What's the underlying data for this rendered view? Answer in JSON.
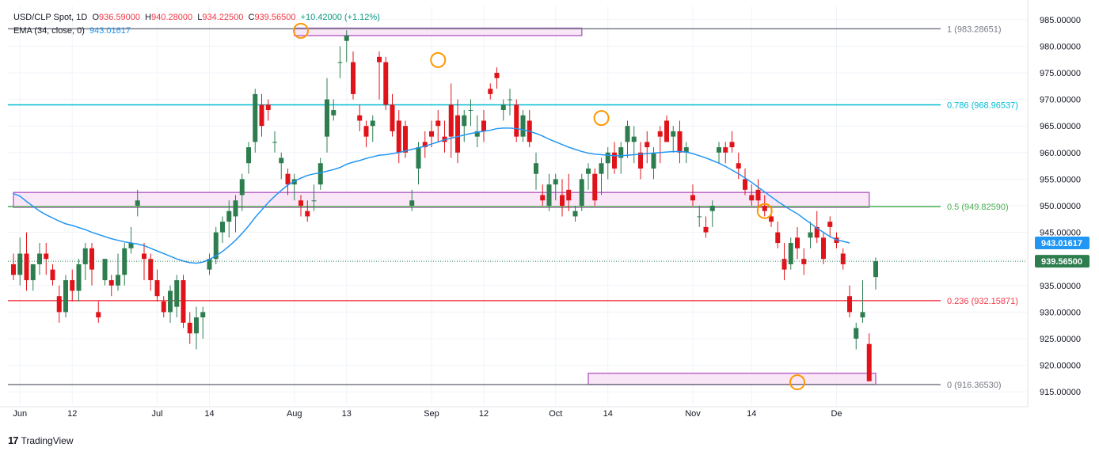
{
  "legend": {
    "symbol": "USD/CLP Spot, 1D",
    "o_label": "O",
    "o_value": "936.59000",
    "h_label": "H",
    "h_value": "940.28000",
    "l_label": "L",
    "l_value": "934.22500",
    "c_label": "C",
    "c_value": "939.56500",
    "change": "+10.42000 (+1.12%)",
    "ema_label": "EMA (34, close, 0)",
    "ema_value": "943.01617"
  },
  "brand": {
    "name": "TradingView"
  },
  "chart_data": {
    "type": "candlestick",
    "ylim": [
      912.5,
      987.5
    ],
    "y_ticks": [
      "985.00000",
      "980.00000",
      "975.00000",
      "970.00000",
      "965.00000",
      "960.00000",
      "955.00000",
      "950.00000",
      "945.00000",
      "940.00000",
      "935.00000",
      "930.00000",
      "925.00000",
      "920.00000",
      "915.00000"
    ],
    "y_tick_values": [
      985,
      980,
      975,
      970,
      965,
      960,
      955,
      950,
      945,
      940,
      935,
      930,
      925,
      920,
      915
    ],
    "x_labels": [
      {
        "label": "Jun",
        "i": 1
      },
      {
        "label": "12",
        "i": 9
      },
      {
        "label": "Jul",
        "i": 22
      },
      {
        "label": "14",
        "i": 30
      },
      {
        "label": "Aug",
        "i": 43
      },
      {
        "label": "13",
        "i": 51
      },
      {
        "label": "Sep",
        "i": 64
      },
      {
        "label": "12",
        "i": 72
      },
      {
        "label": "Oct",
        "i": 83
      },
      {
        "label": "14",
        "i": 91
      },
      {
        "label": "Nov",
        "i": 104
      },
      {
        "label": "14",
        "i": 113
      },
      {
        "label": "De",
        "i": 126
      }
    ],
    "candles": [
      [
        939,
        941,
        936,
        937
      ],
      [
        937,
        944,
        935,
        941
      ],
      [
        941,
        945,
        934,
        936
      ],
      [
        936,
        939,
        934,
        939
      ],
      [
        939,
        943,
        937,
        941
      ],
      [
        941,
        943,
        937,
        940
      ],
      [
        938,
        939,
        935,
        936
      ],
      [
        933,
        935,
        928,
        930
      ],
      [
        930,
        937,
        929,
        936
      ],
      [
        936,
        938,
        932,
        934
      ],
      [
        934,
        940,
        932,
        939
      ],
      [
        939,
        943,
        936,
        942
      ],
      [
        942,
        943,
        935,
        938
      ],
      [
        930,
        932,
        928,
        929
      ],
      [
        936,
        940,
        935,
        940
      ],
      [
        936,
        937,
        933,
        935
      ],
      [
        935,
        941,
        934,
        937
      ],
      [
        937,
        943,
        935,
        942
      ],
      [
        942,
        946,
        941,
        943
      ],
      [
        950,
        953,
        948,
        951
      ],
      [
        941,
        943,
        936,
        940
      ],
      [
        940,
        941,
        934,
        936
      ],
      [
        936,
        938,
        932,
        933
      ],
      [
        932,
        933,
        929,
        930
      ],
      [
        930,
        935,
        928,
        934
      ],
      [
        931,
        937,
        929,
        936
      ],
      [
        936,
        937,
        927,
        928
      ],
      [
        928,
        930,
        924,
        926
      ],
      [
        926,
        931,
        923,
        929
      ],
      [
        929,
        931,
        925,
        930
      ],
      [
        938,
        941,
        937,
        940
      ],
      [
        940,
        946,
        939,
        945
      ],
      [
        945,
        948,
        943,
        947
      ],
      [
        947,
        951,
        944,
        949
      ],
      [
        948,
        952,
        945,
        951
      ],
      [
        952,
        956,
        949,
        955
      ],
      [
        958,
        962,
        956,
        961
      ],
      [
        962,
        972,
        960,
        971
      ],
      [
        969,
        971,
        963,
        965
      ],
      [
        969,
        970,
        966,
        968
      ],
      [
        962,
        964,
        960,
        962
      ],
      [
        958,
        960,
        955,
        959
      ],
      [
        956,
        957,
        952,
        954
      ],
      [
        954,
        956,
        951,
        955
      ],
      [
        951,
        952,
        948,
        950
      ],
      [
        949,
        951,
        947,
        948
      ],
      [
        951,
        954,
        949,
        951
      ],
      [
        954,
        959,
        953,
        958
      ],
      [
        963,
        974,
        960,
        970
      ],
      [
        967,
        970,
        966,
        968
      ],
      [
        977,
        980,
        974,
        977
      ],
      [
        981,
        983,
        977,
        982
      ],
      [
        977,
        979,
        970,
        971
      ],
      [
        967,
        969,
        964,
        966
      ],
      [
        965,
        966,
        961,
        963
      ],
      [
        965,
        967,
        962,
        966
      ],
      [
        978,
        979,
        970,
        977
      ],
      [
        977,
        978,
        968,
        969
      ],
      [
        969,
        971,
        963,
        964
      ],
      [
        966,
        968,
        958,
        960
      ],
      [
        965,
        966,
        959,
        960
      ],
      [
        950,
        953,
        949,
        951
      ],
      [
        957,
        962,
        954,
        961
      ],
      [
        962,
        964,
        959,
        961
      ],
      [
        964,
        966,
        961,
        963
      ],
      [
        966,
        968,
        962,
        965
      ],
      [
        963,
        966,
        960,
        962
      ],
      [
        969,
        973,
        959,
        963
      ],
      [
        967,
        970,
        958,
        960
      ],
      [
        965,
        968,
        962,
        967
      ],
      [
        968,
        970,
        965,
        968
      ],
      [
        963,
        967,
        961,
        964
      ],
      [
        966,
        968,
        962,
        964
      ],
      [
        972,
        973,
        970,
        971
      ],
      [
        975,
        976,
        972,
        974
      ],
      [
        968,
        970,
        966,
        969
      ],
      [
        970,
        972,
        967,
        970
      ],
      [
        969,
        970,
        962,
        963
      ],
      [
        963,
        968,
        962,
        967
      ],
      [
        966,
        968,
        961,
        962
      ],
      [
        956,
        960,
        953,
        958
      ],
      [
        952,
        954,
        950,
        951
      ],
      [
        950,
        956,
        949,
        954
      ],
      [
        954,
        956,
        951,
        955
      ],
      [
        952,
        955,
        948,
        950
      ],
      [
        953,
        956,
        949,
        951
      ],
      [
        948,
        950,
        947,
        949
      ],
      [
        950,
        956,
        949,
        955
      ],
      [
        956,
        958,
        953,
        957
      ],
      [
        956,
        957,
        950,
        951
      ],
      [
        956,
        959,
        952,
        958
      ],
      [
        958,
        961,
        955,
        960
      ],
      [
        960,
        962,
        956,
        957
      ],
      [
        959,
        962,
        956,
        961
      ],
      [
        962,
        966,
        959,
        965
      ],
      [
        962,
        965,
        958,
        963
      ],
      [
        960,
        962,
        955,
        957
      ],
      [
        962,
        964,
        958,
        961
      ],
      [
        957,
        961,
        955,
        960
      ],
      [
        964,
        965,
        958,
        963
      ],
      [
        966,
        967,
        962,
        962
      ],
      [
        963,
        965,
        960,
        964
      ],
      [
        964,
        966,
        958,
        960
      ],
      [
        960,
        962,
        958,
        961
      ],
      [
        952,
        954,
        950,
        951
      ],
      [
        948,
        950,
        946,
        948
      ],
      [
        946,
        948,
        944,
        945
      ],
      [
        949,
        951,
        946,
        950
      ],
      [
        960,
        962,
        958,
        961
      ],
      [
        961,
        962,
        958,
        960
      ],
      [
        962,
        964,
        960,
        961
      ],
      [
        958,
        960,
        955,
        957
      ],
      [
        955,
        957,
        952,
        953
      ],
      [
        952,
        954,
        950,
        951
      ],
      [
        953,
        955,
        949,
        951
      ],
      [
        950,
        952,
        948,
        949
      ],
      [
        948,
        950,
        946,
        947
      ],
      [
        945,
        947,
        942,
        943
      ],
      [
        940,
        943,
        936,
        938
      ],
      [
        939,
        944,
        938,
        943
      ],
      [
        944,
        946,
        940,
        942
      ],
      [
        940,
        942,
        937,
        939
      ],
      [
        944,
        947,
        942,
        945
      ],
      [
        946,
        949,
        943,
        944
      ],
      [
        944,
        945,
        939,
        940
      ],
      [
        947,
        948,
        944,
        946
      ],
      [
        944,
        945,
        942,
        943
      ],
      [
        941,
        942,
        938,
        939
      ],
      [
        933,
        935,
        929,
        930
      ],
      [
        925,
        928,
        923,
        927
      ],
      [
        929,
        936,
        928,
        930
      ],
      [
        924,
        926,
        917,
        917
      ]
    ],
    "ema_values": [
      952.3,
      951.8,
      950.8,
      949.9,
      949,
      948.3,
      947.7,
      947.1,
      946.6,
      946.3,
      945.9,
      945.5,
      945,
      944.6,
      944.2,
      943.8,
      943.5,
      943.2,
      943,
      942.8,
      942.5,
      942,
      941.5,
      941,
      940.5,
      940,
      939.6,
      939.3,
      939.2,
      939.4,
      939.9,
      940.6,
      941.4,
      942.4,
      943.5,
      944.8,
      946.2,
      947.8,
      949.2,
      950.6,
      951.8,
      952.9,
      953.9,
      954.6,
      955.2,
      955.7,
      956,
      956.2,
      956.5,
      956.8,
      957.2,
      957.8,
      958.2,
      958.5,
      958.9,
      959.2,
      959.5,
      959.6,
      959.8,
      960,
      960.3,
      960.6,
      960.9,
      961.2,
      961.6,
      962,
      962.4,
      962.7,
      963,
      963.3,
      963.6,
      963.8,
      964,
      964.2,
      964.5,
      964.6,
      964.6,
      964.5,
      964.3,
      964,
      963.6,
      963.1,
      962.5,
      962,
      961.5,
      961,
      960.6,
      960.2,
      959.9,
      959.7,
      959.6,
      959.5,
      959.4,
      959.4,
      959.5,
      959.6,
      959.7,
      959.8,
      959.9,
      960,
      960.1,
      960.2,
      960.2,
      960.1,
      959.8,
      959.4,
      959,
      958.5,
      958,
      957.4,
      956.7,
      956,
      955.2,
      954.4,
      953.5,
      952.6,
      951.7,
      950.8,
      950,
      949.2,
      948.5,
      947.6,
      946.7,
      945.8,
      945,
      944.2,
      943.6,
      943.3,
      943.0
    ],
    "last_candle": [
      936.59,
      940.28,
      934.225,
      939.565
    ],
    "last_price_label": "939.56500",
    "ema_label": "943.01617",
    "fib_levels": [
      {
        "label": "1 (983.28651)",
        "value": 983.28651,
        "color": "#787b86"
      },
      {
        "label": "0.786 (968.96537)",
        "value": 968.96537,
        "color": "#00bcd4"
      },
      {
        "label": "0.5 (949.82590)",
        "value": 949.8259,
        "color": "#4caf50"
      },
      {
        "label": "0.236 (932.15871)",
        "value": 932.15871,
        "color": "#f23645"
      },
      {
        "label": "0 (916.36530)",
        "value": 916.3653,
        "color": "#787b86"
      }
    ],
    "zones": [
      {
        "from_i": 43,
        "to_i": 87,
        "low": 982.0,
        "high": 983.4
      },
      {
        "from_i": 0,
        "to_i": 131,
        "low": 949.7,
        "high": 952.5
      },
      {
        "from_i": 88,
        "to_i": 132,
        "low": 916.4,
        "high": 918.5
      }
    ],
    "markers": [
      {
        "i": 44,
        "value": 982.9
      },
      {
        "i": 65,
        "value": 977.4
      },
      {
        "i": 90,
        "value": 966.5
      },
      {
        "i": 115,
        "value": 949
      },
      {
        "i": 120,
        "value": 916.8
      }
    ],
    "colors": {
      "up": "#2e7d4f",
      "down": "#e0131a",
      "ema": "#2196f3",
      "grid": "#f0f3fa",
      "marker": "#ff9800",
      "zone_fill": "#f8e1f5",
      "zone_stroke": "#ba68c8"
    }
  }
}
